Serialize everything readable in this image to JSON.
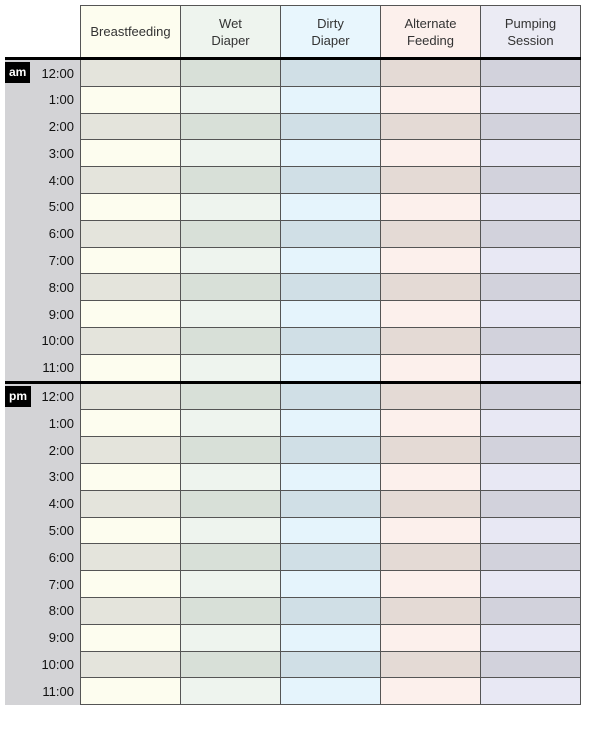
{
  "columns": [
    {
      "label": "Breastfeeding",
      "header_color": "#fdfdef",
      "light": "#fdfdef",
      "dark": "#e4e4dc"
    },
    {
      "label": "Wet\nDiaper",
      "header_color": "#eef4ee",
      "light": "#eef4ee",
      "dark": "#d8e0d8"
    },
    {
      "label": "Dirty\nDiaper",
      "header_color": "#e8f6fd",
      "light": "#e5f4fc",
      "dark": "#d0dfe6"
    },
    {
      "label": "Alternate\nFeeding",
      "header_color": "#fcf0ec",
      "light": "#fcf0ec",
      "dark": "#e4dad5"
    },
    {
      "label": "Pumping\nSession",
      "header_color": "#ebebf4",
      "light": "#e8e8f4",
      "dark": "#d2d2dc"
    }
  ],
  "periods": [
    {
      "label": "am",
      "times": [
        "12:00",
        "1:00",
        "2:00",
        "3:00",
        "4:00",
        "5:00",
        "6:00",
        "7:00",
        "8:00",
        "9:00",
        "10:00",
        "11:00"
      ]
    },
    {
      "label": "pm",
      "times": [
        "12:00",
        "1:00",
        "2:00",
        "3:00",
        "4:00",
        "5:00",
        "6:00",
        "7:00",
        "8:00",
        "9:00",
        "10:00",
        "11:00"
      ]
    }
  ]
}
